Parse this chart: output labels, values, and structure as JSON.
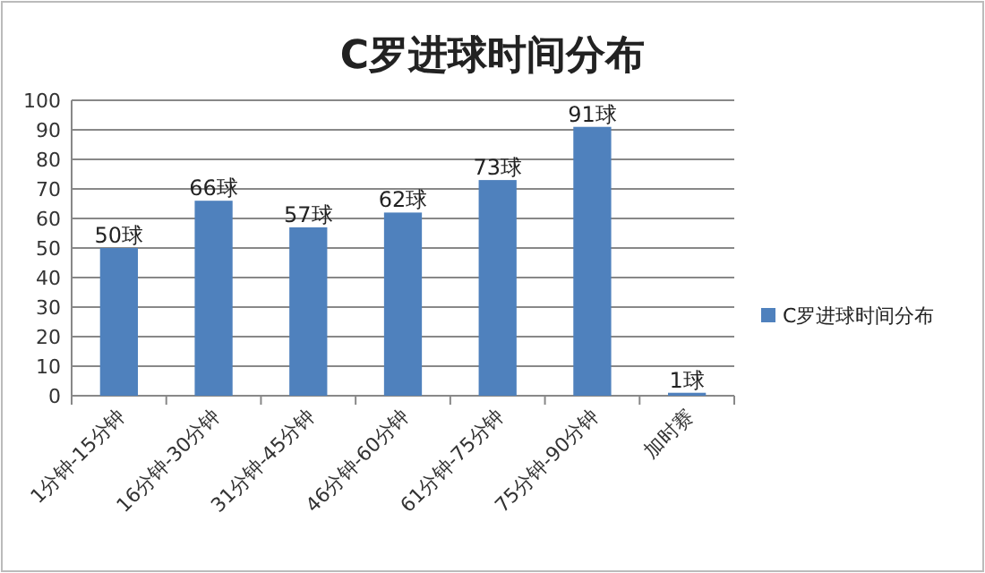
{
  "chart_data": {
    "type": "bar",
    "title": "C罗进球时间分布",
    "categories": [
      "1分钟-15分钟",
      "16分钟-30分钟",
      "31分钟-45分钟",
      "46分钟-60分钟",
      "61分钟-75分钟",
      "75分钟-90分钟",
      "加时赛"
    ],
    "series": [
      {
        "name": "C罗进球时间分布",
        "color": "#4f81bd",
        "values": [
          50,
          66,
          57,
          62,
          73,
          91,
          1
        ],
        "value_labels": [
          "50球",
          "66球",
          "57球",
          "62球",
          "73球",
          "91球",
          "1球"
        ]
      }
    ],
    "ylim": [
      0,
      100
    ],
    "yticks": [
      0,
      10,
      20,
      30,
      40,
      50,
      60,
      70,
      80,
      90,
      100
    ],
    "grid": "y",
    "legend": "right"
  }
}
